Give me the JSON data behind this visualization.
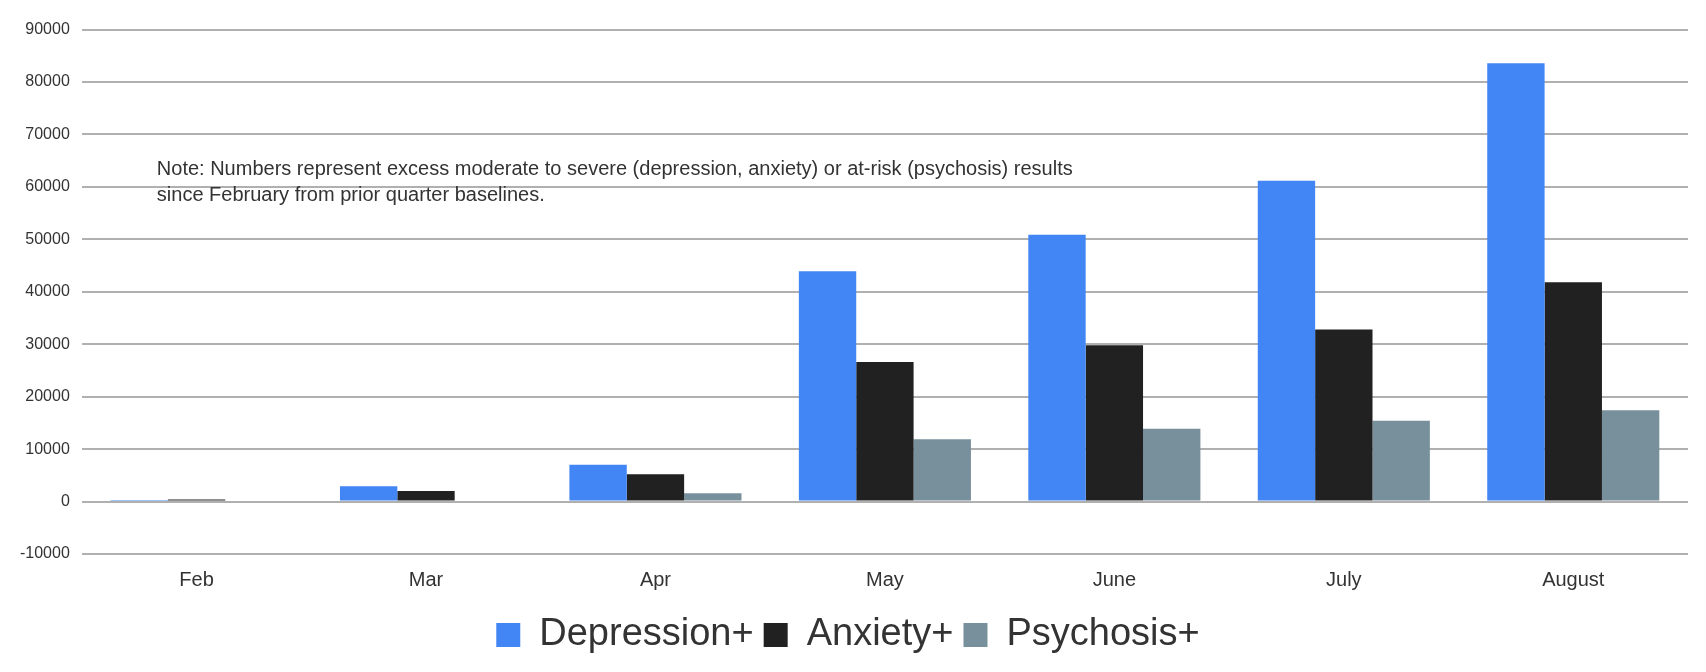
{
  "chart_data": {
    "type": "bar",
    "categories": [
      "Feb",
      "Mar",
      "Apr",
      "May",
      "June",
      "July",
      "August"
    ],
    "series": [
      {
        "name": "Depression+",
        "color": "#4285f4",
        "values": [
          300,
          2900,
          7000,
          43900,
          50900,
          61200,
          83600
        ]
      },
      {
        "name": "Anxiety+",
        "color": "#212121",
        "values": [
          400,
          2000,
          5200,
          26600,
          29800,
          32800,
          41800
        ]
      },
      {
        "name": "Psychosis+",
        "color": "#78909c",
        "values": [
          null,
          200,
          1600,
          11900,
          13900,
          15400,
          17400
        ]
      }
    ],
    "ylim": [
      -10000,
      90000
    ],
    "yticks": [
      -10000,
      0,
      10000,
      20000,
      30000,
      40000,
      50000,
      60000,
      70000,
      80000,
      90000
    ],
    "grid": "y",
    "legend": "bottom",
    "annotations": [
      "Note: Numbers represent excess moderate to severe (depression, anxiety) or at-risk (psychosis) results since February from prior quarter baselines."
    ]
  }
}
